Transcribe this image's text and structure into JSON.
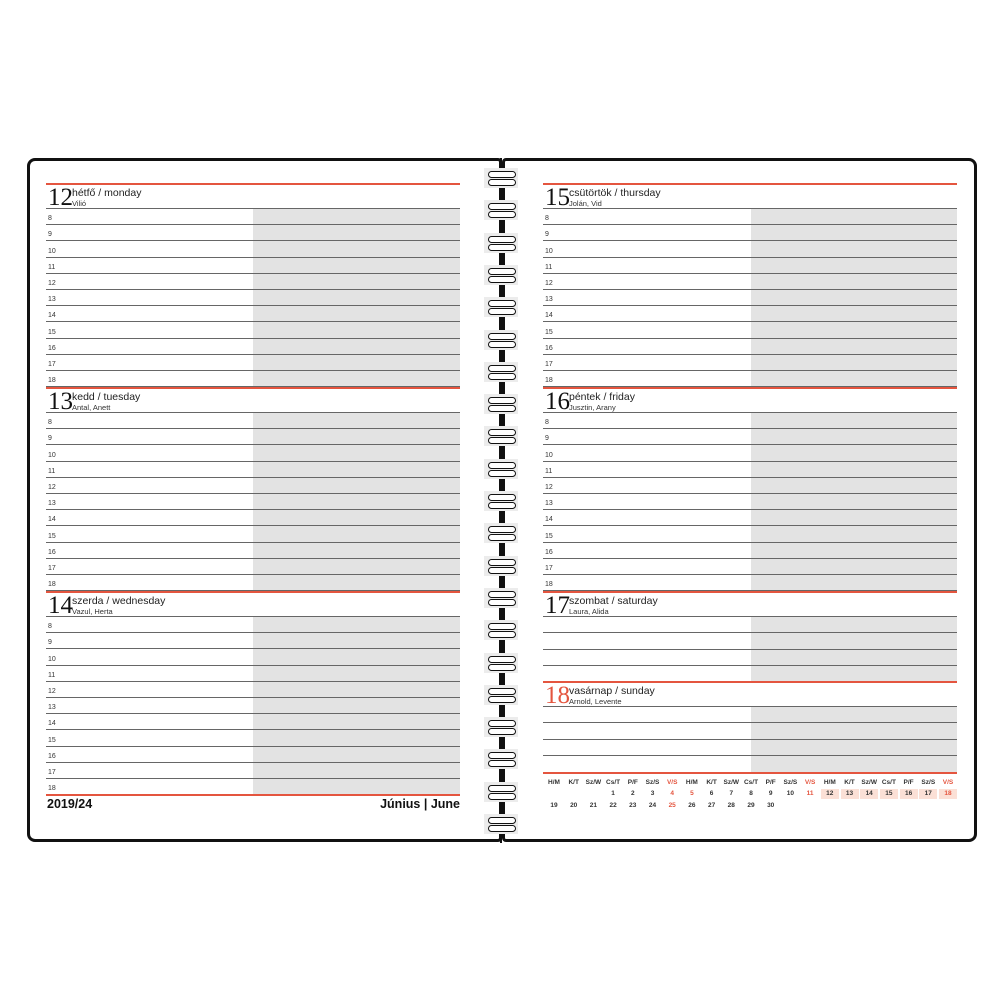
{
  "hours": [
    "8",
    "9",
    "10",
    "11",
    "12",
    "13",
    "14",
    "15",
    "16",
    "17",
    "18"
  ],
  "left_page": {
    "days": [
      {
        "num": "12",
        "name": "hétfő / monday",
        "saints": "Vilió"
      },
      {
        "num": "13",
        "name": "kedd / tuesday",
        "saints": "Antal, Anett"
      },
      {
        "num": "14",
        "name": "szerda / wednesday",
        "saints": "Vazul, Herta"
      }
    ],
    "week_label": "2019/24",
    "month_label": "Június | June"
  },
  "right_page": {
    "days": [
      {
        "num": "15",
        "name": "csütörtök / thursday",
        "saints": "Jolán, Vid"
      },
      {
        "num": "16",
        "name": "péntek / friday",
        "saints": "Jusztin, Arany"
      },
      {
        "num": "17",
        "name": "szombat / saturday",
        "saints": "Laura, Alida"
      },
      {
        "num": "18",
        "name": "vasárnap / sunday",
        "saints": "Arnold, Levente",
        "red": true
      }
    ]
  },
  "mini_calendar": {
    "headers": [
      "H/M",
      "K/T",
      "Sz/W",
      "Cs/T",
      "P/F",
      "Sz/S",
      "V/S",
      "H/M",
      "K/T",
      "Sz/W",
      "Cs/T",
      "P/F",
      "Sz/S",
      "V/S",
      "H/M",
      "K/T",
      "Sz/W",
      "Cs/T",
      "P/F",
      "Sz/S",
      "V/S"
    ],
    "rows": [
      [
        "",
        "",
        "",
        "1",
        "2",
        "3",
        "4",
        "5",
        "6",
        "7",
        "8",
        "9",
        "10",
        "11",
        "12",
        "13",
        "14",
        "15",
        "16",
        "17",
        "18"
      ],
      [
        "19",
        "20",
        "21",
        "22",
        "23",
        "24",
        "25",
        "26",
        "27",
        "28",
        "29",
        "30",
        "",
        "",
        "",
        "",
        "",
        "",
        "",
        "",
        ""
      ]
    ],
    "red_days": [
      "4",
      "5",
      "11",
      "18",
      "25"
    ],
    "current_week": [
      "12",
      "13",
      "14",
      "15",
      "16",
      "17",
      "18"
    ]
  },
  "colors": {
    "accent": "#e4553f",
    "shade": "#e3e3e3",
    "highlight": "#fbe0d6"
  }
}
